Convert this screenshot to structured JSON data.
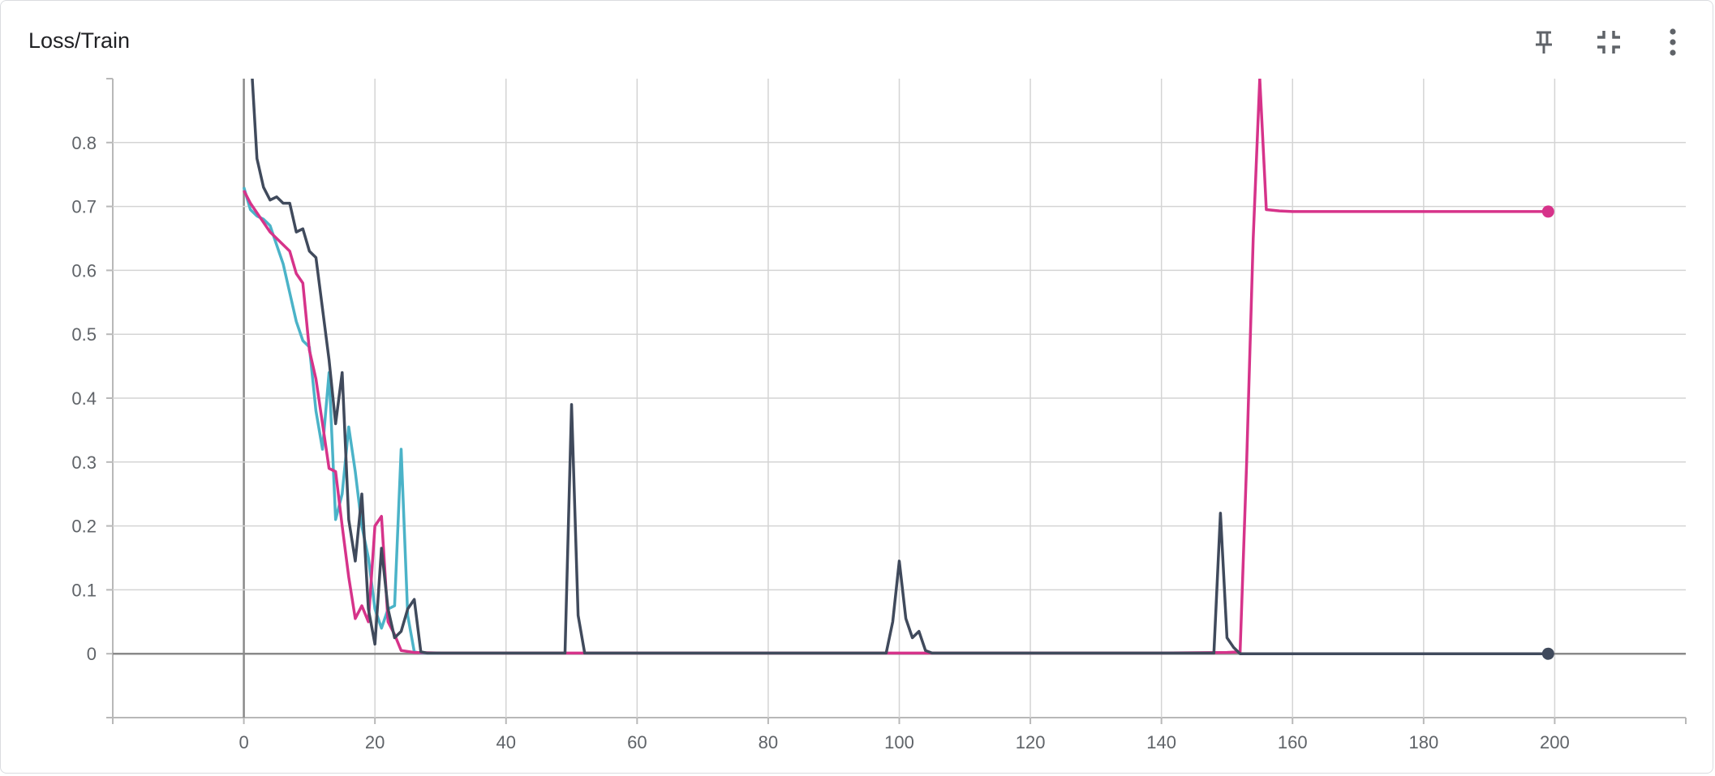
{
  "card": {
    "title": "Loss/Train"
  },
  "toolbar": {
    "pin_icon": "pin-icon",
    "collapse_icon": "collapse-icon",
    "more_icon": "more-vert-icon"
  },
  "colors": {
    "magenta": "#d6338a",
    "teal": "#4bb3c8",
    "dark": "#404a5c"
  },
  "chart_data": {
    "type": "line",
    "title": "Loss/Train",
    "xlabel": "",
    "ylabel": "",
    "xlim": [
      -20,
      220
    ],
    "ylim": [
      -0.1,
      0.9
    ],
    "xticks": [
      0,
      20,
      40,
      60,
      80,
      100,
      120,
      140,
      160,
      180,
      200
    ],
    "yticks": [
      0,
      0.1,
      0.2,
      0.3,
      0.4,
      0.5,
      0.6,
      0.7,
      0.8
    ],
    "grid": true,
    "legend": "none",
    "series": [
      {
        "color": "#d6338a",
        "end_marker": true,
        "points": [
          [
            0,
            0.725
          ],
          [
            1,
            0.705
          ],
          [
            2,
            0.69
          ],
          [
            3,
            0.675
          ],
          [
            4,
            0.66
          ],
          [
            5,
            0.65
          ],
          [
            6,
            0.64
          ],
          [
            7,
            0.63
          ],
          [
            8,
            0.595
          ],
          [
            9,
            0.58
          ],
          [
            10,
            0.475
          ],
          [
            11,
            0.43
          ],
          [
            12,
            0.36
          ],
          [
            13,
            0.29
          ],
          [
            14,
            0.285
          ],
          [
            15,
            0.2
          ],
          [
            16,
            0.12
          ],
          [
            17,
            0.055
          ],
          [
            18,
            0.075
          ],
          [
            19,
            0.05
          ],
          [
            20,
            0.2
          ],
          [
            21,
            0.215
          ],
          [
            22,
            0.05
          ],
          [
            23,
            0.03
          ],
          [
            24,
            0.005
          ],
          [
            26,
            0.002
          ],
          [
            30,
            0.001
          ],
          [
            50,
            0.001
          ],
          [
            100,
            0.001
          ],
          [
            140,
            0.001
          ],
          [
            150,
            0.002
          ],
          [
            152,
            0.003
          ],
          [
            153,
            0.3
          ],
          [
            154,
            0.65
          ],
          [
            155,
            0.9
          ],
          [
            156,
            0.695
          ],
          [
            158,
            0.693
          ],
          [
            160,
            0.692
          ],
          [
            170,
            0.692
          ],
          [
            180,
            0.692
          ],
          [
            190,
            0.692
          ],
          [
            199,
            0.692
          ]
        ]
      },
      {
        "color": "#4bb3c8",
        "end_marker": false,
        "points": [
          [
            0,
            0.73
          ],
          [
            1,
            0.695
          ],
          [
            2,
            0.685
          ],
          [
            3,
            0.68
          ],
          [
            4,
            0.67
          ],
          [
            5,
            0.64
          ],
          [
            6,
            0.61
          ],
          [
            7,
            0.565
          ],
          [
            8,
            0.52
          ],
          [
            9,
            0.49
          ],
          [
            10,
            0.48
          ],
          [
            11,
            0.38
          ],
          [
            12,
            0.32
          ],
          [
            13,
            0.44
          ],
          [
            14,
            0.21
          ],
          [
            15,
            0.25
          ],
          [
            16,
            0.355
          ],
          [
            17,
            0.285
          ],
          [
            18,
            0.2
          ],
          [
            19,
            0.15
          ],
          [
            20,
            0.07
          ],
          [
            21,
            0.04
          ],
          [
            22,
            0.07
          ],
          [
            23,
            0.075
          ],
          [
            24,
            0.32
          ],
          [
            25,
            0.06
          ],
          [
            26,
            0.003
          ],
          [
            27,
            0.001
          ],
          [
            30,
            0.001
          ]
        ]
      },
      {
        "color": "#404a5c",
        "end_marker": true,
        "points": [
          [
            1,
            0.95
          ],
          [
            2,
            0.775
          ],
          [
            3,
            0.73
          ],
          [
            4,
            0.71
          ],
          [
            5,
            0.715
          ],
          [
            6,
            0.705
          ],
          [
            7,
            0.705
          ],
          [
            8,
            0.66
          ],
          [
            9,
            0.665
          ],
          [
            10,
            0.63
          ],
          [
            11,
            0.62
          ],
          [
            12,
            0.54
          ],
          [
            13,
            0.46
          ],
          [
            14,
            0.36
          ],
          [
            15,
            0.44
          ],
          [
            16,
            0.21
          ],
          [
            17,
            0.145
          ],
          [
            18,
            0.25
          ],
          [
            19,
            0.07
          ],
          [
            20,
            0.015
          ],
          [
            21,
            0.165
          ],
          [
            22,
            0.07
          ],
          [
            23,
            0.025
          ],
          [
            24,
            0.035
          ],
          [
            25,
            0.07
          ],
          [
            26,
            0.085
          ],
          [
            27,
            0.003
          ],
          [
            28,
            0.001
          ],
          [
            49,
            0.001
          ],
          [
            50,
            0.39
          ],
          [
            51,
            0.06
          ],
          [
            52,
            0.001
          ],
          [
            98,
            0.001
          ],
          [
            99,
            0.05
          ],
          [
            100,
            0.145
          ],
          [
            101,
            0.055
          ],
          [
            102,
            0.025
          ],
          [
            103,
            0.035
          ],
          [
            104,
            0.005
          ],
          [
            105,
            0.001
          ],
          [
            148,
            0.001
          ],
          [
            149,
            0.22
          ],
          [
            150,
            0.025
          ],
          [
            151,
            0.01
          ],
          [
            152,
            0.0
          ],
          [
            199,
            0.0
          ]
        ]
      }
    ]
  }
}
